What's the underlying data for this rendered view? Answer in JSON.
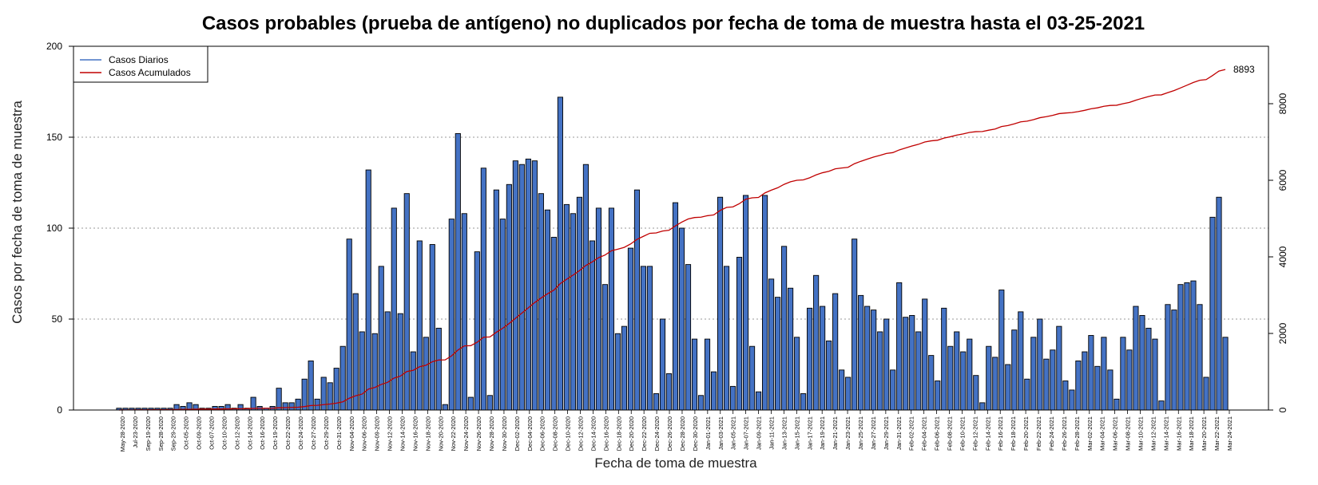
{
  "chart_data": {
    "type": "bar",
    "title": "Casos probables (prueba de antígeno) no duplicados por fecha de toma de muestra hasta el 03-25-2021",
    "xlabel": "Fecha de toma de muestra",
    "ylabel": "Casos por fecha de toma de muestra",
    "ylim": [
      0,
      200
    ],
    "y_ticks": [
      0,
      50,
      100,
      150,
      200
    ],
    "y2_ticks": [
      0,
      2000,
      4000,
      6000,
      8000
    ],
    "y2lim": [
      0,
      9500
    ],
    "grid": "horizontal dotted",
    "legend_position": "top-left",
    "end_label": "8893",
    "x_tick_labels": [
      "May-28-2020",
      "Jul-23-2020",
      "Sep-19-2020",
      "Sep-28-2020",
      "Sep-29-2020",
      "Oct-05-2020",
      "Oct-09-2020",
      "Oct-07-2020",
      "Oct-10-2020",
      "Oct-12-2020",
      "Oct-14-2020",
      "Oct-16-2020",
      "Oct-19-2020",
      "Oct-22-2020",
      "Oct-24-2020",
      "Oct-27-2020",
      "Oct-29-2020",
      "Oct-31-2020",
      "Nov-04-2020",
      "Nov-06-2020",
      "Nov-09-2020",
      "Nov-12-2020",
      "Nov-14-2020",
      "Nov-16-2020",
      "Nov-18-2020",
      "Nov-20-2020",
      "Nov-22-2020",
      "Nov-24-2020",
      "Nov-26-2020",
      "Nov-28-2020",
      "Nov-30-2020",
      "Dec-02-2020",
      "Dec-04-2020",
      "Dec-06-2020",
      "Dec-08-2020",
      "Dec-10-2020",
      "Dec-12-2020",
      "Dec-14-2020",
      "Dec-16-2020",
      "Dec-18-2020",
      "Dec-20-2020",
      "Dec-22-2020",
      "Dec-24-2020",
      "Dec-26-2020",
      "Dec-28-2020",
      "Dec-30-2020",
      "Jan-01-2021",
      "Jan-03-2021",
      "Jan-05-2021",
      "Jan-07-2021",
      "Jan-09-2021",
      "Jan-11-2021",
      "Jan-13-2021",
      "Jan-15-2021",
      "Jan-17-2021",
      "Jan-19-2021",
      "Jan-21-2021",
      "Jan-23-2021",
      "Jan-25-2021",
      "Jan-27-2021",
      "Jan-29-2021",
      "Jan-31-2021",
      "Feb-02-2021",
      "Feb-04-2021",
      "Feb-06-2021",
      "Feb-08-2021",
      "Feb-10-2021",
      "Feb-12-2021",
      "Feb-14-2021",
      "Feb-16-2021",
      "Feb-18-2021",
      "Feb-20-2021",
      "Feb-22-2021",
      "Feb-24-2021",
      "Feb-26-2021",
      "Feb-28-2021",
      "Mar-02-2021",
      "Mar-04-2021",
      "Mar-06-2021",
      "Mar-08-2021",
      "Mar-10-2021",
      "Mar-12-2021",
      "Mar-14-2021",
      "Mar-16-2021",
      "Mar-18-2021",
      "Mar-20-2021",
      "Mar-22-2021",
      "Mar-24-2021"
    ],
    "series": [
      {
        "name": "Casos Diarios",
        "color": "#4472C4",
        "values": [
          1,
          1,
          1,
          1,
          1,
          1,
          1,
          1,
          1,
          3,
          2,
          4,
          3,
          1,
          1,
          2,
          2,
          3,
          1,
          3,
          1,
          7,
          2,
          1,
          2,
          12,
          4,
          4,
          6,
          17,
          27,
          6,
          18,
          15,
          23,
          35,
          94,
          64,
          43,
          132,
          42,
          79,
          54,
          111,
          53,
          119,
          32,
          93,
          40,
          91,
          45,
          3,
          105,
          152,
          108,
          7,
          87,
          133,
          8,
          121,
          105,
          124,
          137,
          135,
          138,
          137,
          119,
          110,
          95,
          172,
          113,
          108,
          117,
          135,
          93,
          111,
          69,
          111,
          42,
          46,
          89,
          121,
          79,
          79,
          9,
          50,
          20,
          114,
          100,
          80,
          39,
          8,
          39,
          21,
          117,
          79,
          13,
          84,
          118,
          35,
          10,
          118,
          72,
          62,
          90,
          67,
          40,
          9,
          56,
          74,
          57,
          38,
          64,
          22,
          18,
          94,
          63,
          57,
          55,
          43,
          50,
          22,
          70,
          51,
          52,
          43,
          61,
          30,
          16,
          56,
          35,
          43,
          32,
          39,
          19,
          4,
          35,
          29,
          66,
          25,
          44,
          54,
          17,
          40,
          50,
          28,
          33,
          46,
          16,
          11,
          27,
          32,
          41,
          24,
          40,
          22,
          6,
          40,
          33,
          57,
          52,
          45,
          39,
          5,
          58,
          55,
          69,
          70,
          71,
          58,
          18,
          106,
          117,
          40
        ]
      },
      {
        "name": "Casos Acumulados",
        "color": "#C00000",
        "end_value": 8893
      }
    ]
  }
}
